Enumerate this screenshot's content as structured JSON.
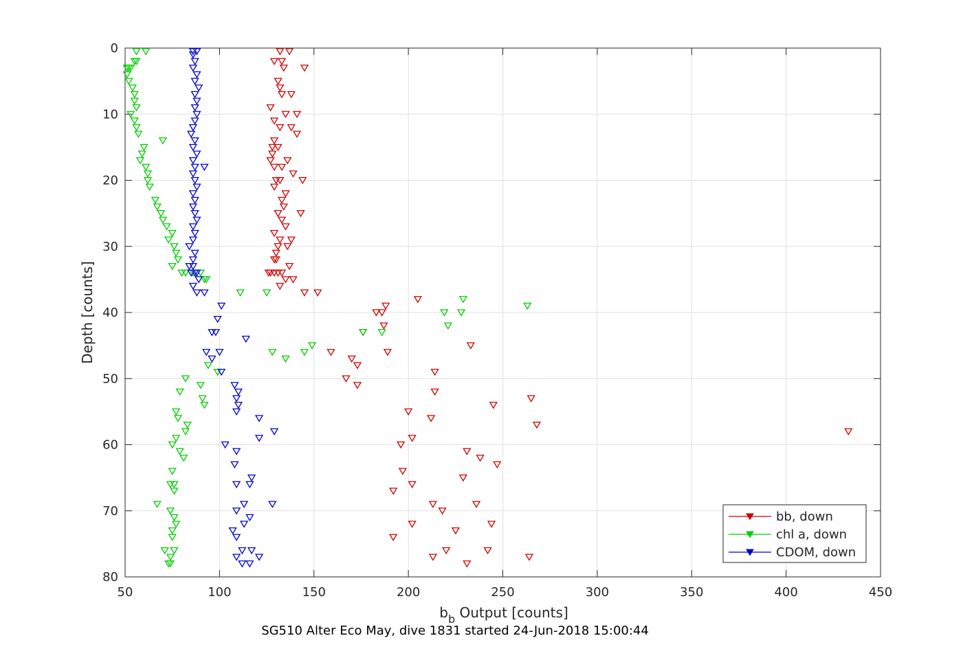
{
  "chart_data": {
    "type": "scatter",
    "title": "SG510 Alter Eco May, dive 1831 started 24-Jun-2018 15:00:44",
    "xlabel_main": "b",
    "xlabel_sub": "b",
    "xlabel_rest": " Output [counts]",
    "ylabel": "Depth [counts]",
    "xlim": [
      50,
      450
    ],
    "ylim": [
      0,
      80
    ],
    "y_reversed": true,
    "x_ticks": [
      50,
      100,
      150,
      200,
      250,
      300,
      350,
      400,
      450
    ],
    "y_ticks": [
      0,
      10,
      20,
      30,
      40,
      50,
      60,
      70,
      80
    ],
    "grid": true,
    "legend_position": "bottom-right",
    "marker": "triangle-down",
    "series": [
      {
        "name": "bb, down",
        "color": "#cc0000",
        "points": [
          [
            132,
            0.5
          ],
          [
            137,
            0.5
          ],
          [
            129,
            2
          ],
          [
            133,
            2
          ],
          [
            145,
            3
          ],
          [
            134,
            3
          ],
          [
            131,
            5
          ],
          [
            132,
            6
          ],
          [
            138,
            7
          ],
          [
            133,
            7
          ],
          [
            127,
            9
          ],
          [
            141,
            10
          ],
          [
            135,
            10
          ],
          [
            129,
            11
          ],
          [
            132,
            12
          ],
          [
            138,
            12
          ],
          [
            141,
            13
          ],
          [
            129,
            14
          ],
          [
            128,
            15
          ],
          [
            131,
            15
          ],
          [
            128,
            16
          ],
          [
            127,
            17
          ],
          [
            136,
            17
          ],
          [
            129,
            18
          ],
          [
            133,
            18
          ],
          [
            139,
            19
          ],
          [
            132,
            20
          ],
          [
            144,
            20
          ],
          [
            130,
            20
          ],
          [
            129,
            21
          ],
          [
            135,
            22
          ],
          [
            133,
            23
          ],
          [
            134,
            24
          ],
          [
            143,
            25
          ],
          [
            131,
            25
          ],
          [
            133,
            26
          ],
          [
            135,
            27
          ],
          [
            129,
            28
          ],
          [
            132,
            29
          ],
          [
            138,
            29
          ],
          [
            136,
            30
          ],
          [
            131,
            30
          ],
          [
            130,
            31
          ],
          [
            130,
            32
          ],
          [
            129,
            32
          ],
          [
            137,
            33
          ],
          [
            126,
            34
          ],
          [
            129,
            34
          ],
          [
            131,
            34
          ],
          [
            127,
            34
          ],
          [
            133,
            34
          ],
          [
            135,
            35
          ],
          [
            139,
            35
          ],
          [
            132,
            36
          ],
          [
            145,
            37
          ],
          [
            152,
            37
          ],
          [
            205,
            38
          ],
          [
            188,
            39
          ],
          [
            183,
            40
          ],
          [
            186,
            40
          ],
          [
            187,
            42
          ],
          [
            176,
            43
          ],
          [
            233,
            45
          ],
          [
            159,
            46
          ],
          [
            189,
            46
          ],
          [
            170,
            47
          ],
          [
            173,
            48
          ],
          [
            167,
            50
          ],
          [
            214,
            49
          ],
          [
            173,
            51
          ],
          [
            214,
            52
          ],
          [
            265,
            53
          ],
          [
            245,
            54
          ],
          [
            200,
            55
          ],
          [
            212,
            56
          ],
          [
            268,
            57
          ],
          [
            433,
            58
          ],
          [
            202,
            59
          ],
          [
            196,
            60
          ],
          [
            231,
            61
          ],
          [
            238,
            62
          ],
          [
            247,
            63
          ],
          [
            197,
            64
          ],
          [
            229,
            65
          ],
          [
            192,
            67
          ],
          [
            202,
            66
          ],
          [
            213,
            69
          ],
          [
            236,
            69
          ],
          [
            218,
            70
          ],
          [
            202,
            72
          ],
          [
            244,
            72
          ],
          [
            225,
            73
          ],
          [
            192,
            74
          ],
          [
            242,
            76
          ],
          [
            220,
            76
          ],
          [
            264,
            77
          ],
          [
            213,
            77
          ],
          [
            231,
            78
          ]
        ]
      },
      {
        "name": "chl a, down",
        "color": "#00cc00",
        "points": [
          [
            56,
            0.5
          ],
          [
            61,
            0.5
          ],
          [
            56,
            2
          ],
          [
            55,
            2
          ],
          [
            51,
            3
          ],
          [
            52,
            3
          ],
          [
            53,
            3
          ],
          [
            51,
            4
          ],
          [
            52,
            5
          ],
          [
            54,
            6
          ],
          [
            55,
            7
          ],
          [
            55,
            8
          ],
          [
            56,
            9
          ],
          [
            53,
            10
          ],
          [
            55,
            11
          ],
          [
            56,
            12
          ],
          [
            57,
            13
          ],
          [
            70,
            14
          ],
          [
            60,
            15
          ],
          [
            59,
            16
          ],
          [
            58,
            17
          ],
          [
            61,
            18
          ],
          [
            62,
            19
          ],
          [
            62,
            20
          ],
          [
            63,
            21
          ],
          [
            66,
            23
          ],
          [
            67,
            24
          ],
          [
            69,
            25
          ],
          [
            70,
            26
          ],
          [
            72,
            27
          ],
          [
            75,
            28
          ],
          [
            73,
            29
          ],
          [
            76,
            30
          ],
          [
            77,
            31
          ],
          [
            78,
            32
          ],
          [
            75,
            33
          ],
          [
            80,
            34
          ],
          [
            82,
            34
          ],
          [
            86,
            34
          ],
          [
            90,
            34
          ],
          [
            93,
            35
          ],
          [
            92,
            35
          ],
          [
            111,
            37
          ],
          [
            125,
            37
          ],
          [
            229,
            38
          ],
          [
            263,
            39
          ],
          [
            219,
            40
          ],
          [
            228,
            40
          ],
          [
            221,
            42
          ],
          [
            176,
            43
          ],
          [
            186,
            43
          ],
          [
            149,
            45
          ],
          [
            145,
            46
          ],
          [
            128,
            46
          ],
          [
            135,
            47
          ],
          [
            94,
            48
          ],
          [
            99,
            49
          ],
          [
            82,
            50
          ],
          [
            90,
            51
          ],
          [
            79,
            52
          ],
          [
            91,
            53
          ],
          [
            92,
            54
          ],
          [
            77,
            55
          ],
          [
            78,
            56
          ],
          [
            83,
            57
          ],
          [
            82,
            58
          ],
          [
            77,
            59
          ],
          [
            75,
            60
          ],
          [
            79,
            61
          ],
          [
            81,
            62
          ],
          [
            75,
            64
          ],
          [
            74,
            66
          ],
          [
            76,
            66
          ],
          [
            76,
            67
          ],
          [
            67,
            69
          ],
          [
            74,
            70
          ],
          [
            76,
            71
          ],
          [
            77,
            72
          ],
          [
            75,
            73
          ],
          [
            75,
            74
          ],
          [
            71,
            76
          ],
          [
            76,
            76
          ],
          [
            74,
            77
          ],
          [
            73,
            78
          ],
          [
            74,
            78
          ]
        ]
      },
      {
        "name": "CDOM, down",
        "color": "#0000cc",
        "points": [
          [
            86,
            0.5
          ],
          [
            88,
            0.5
          ],
          [
            86,
            1
          ],
          [
            87,
            2
          ],
          [
            86,
            3
          ],
          [
            88,
            4
          ],
          [
            87,
            5
          ],
          [
            89,
            6
          ],
          [
            87,
            7
          ],
          [
            88,
            8
          ],
          [
            87,
            9
          ],
          [
            88,
            10
          ],
          [
            87,
            11
          ],
          [
            86,
            12
          ],
          [
            85,
            13
          ],
          [
            87,
            14
          ],
          [
            86,
            15
          ],
          [
            88,
            16
          ],
          [
            86,
            17
          ],
          [
            87,
            18
          ],
          [
            92,
            18
          ],
          [
            86,
            19
          ],
          [
            87,
            20
          ],
          [
            88,
            21
          ],
          [
            86,
            22
          ],
          [
            87,
            23
          ],
          [
            86,
            24
          ],
          [
            87,
            25
          ],
          [
            88,
            26
          ],
          [
            86,
            27
          ],
          [
            87,
            28
          ],
          [
            86,
            29
          ],
          [
            84,
            30
          ],
          [
            87,
            31
          ],
          [
            86,
            32
          ],
          [
            84,
            33
          ],
          [
            86,
            33
          ],
          [
            87,
            34
          ],
          [
            85,
            34
          ],
          [
            88,
            34
          ],
          [
            89,
            35
          ],
          [
            86,
            36
          ],
          [
            88,
            37
          ],
          [
            92,
            37
          ],
          [
            101,
            39
          ],
          [
            99,
            41
          ],
          [
            96,
            43
          ],
          [
            98,
            43
          ],
          [
            114,
            44
          ],
          [
            93,
            46
          ],
          [
            100,
            46
          ],
          [
            96,
            47
          ],
          [
            101,
            49
          ],
          [
            108,
            51
          ],
          [
            110,
            52
          ],
          [
            109,
            53
          ],
          [
            110,
            54
          ],
          [
            109,
            55
          ],
          [
            121,
            56
          ],
          [
            129,
            58
          ],
          [
            121,
            59
          ],
          [
            103,
            60
          ],
          [
            109,
            61
          ],
          [
            108,
            63
          ],
          [
            117,
            65
          ],
          [
            109,
            66
          ],
          [
            116,
            66
          ],
          [
            113,
            69
          ],
          [
            128,
            69
          ],
          [
            109,
            70
          ],
          [
            116,
            71
          ],
          [
            113,
            72
          ],
          [
            107,
            73
          ],
          [
            109,
            74
          ],
          [
            112,
            76
          ],
          [
            117,
            76
          ],
          [
            109,
            77
          ],
          [
            121,
            77
          ],
          [
            112,
            78
          ],
          [
            116,
            78
          ]
        ]
      }
    ]
  }
}
